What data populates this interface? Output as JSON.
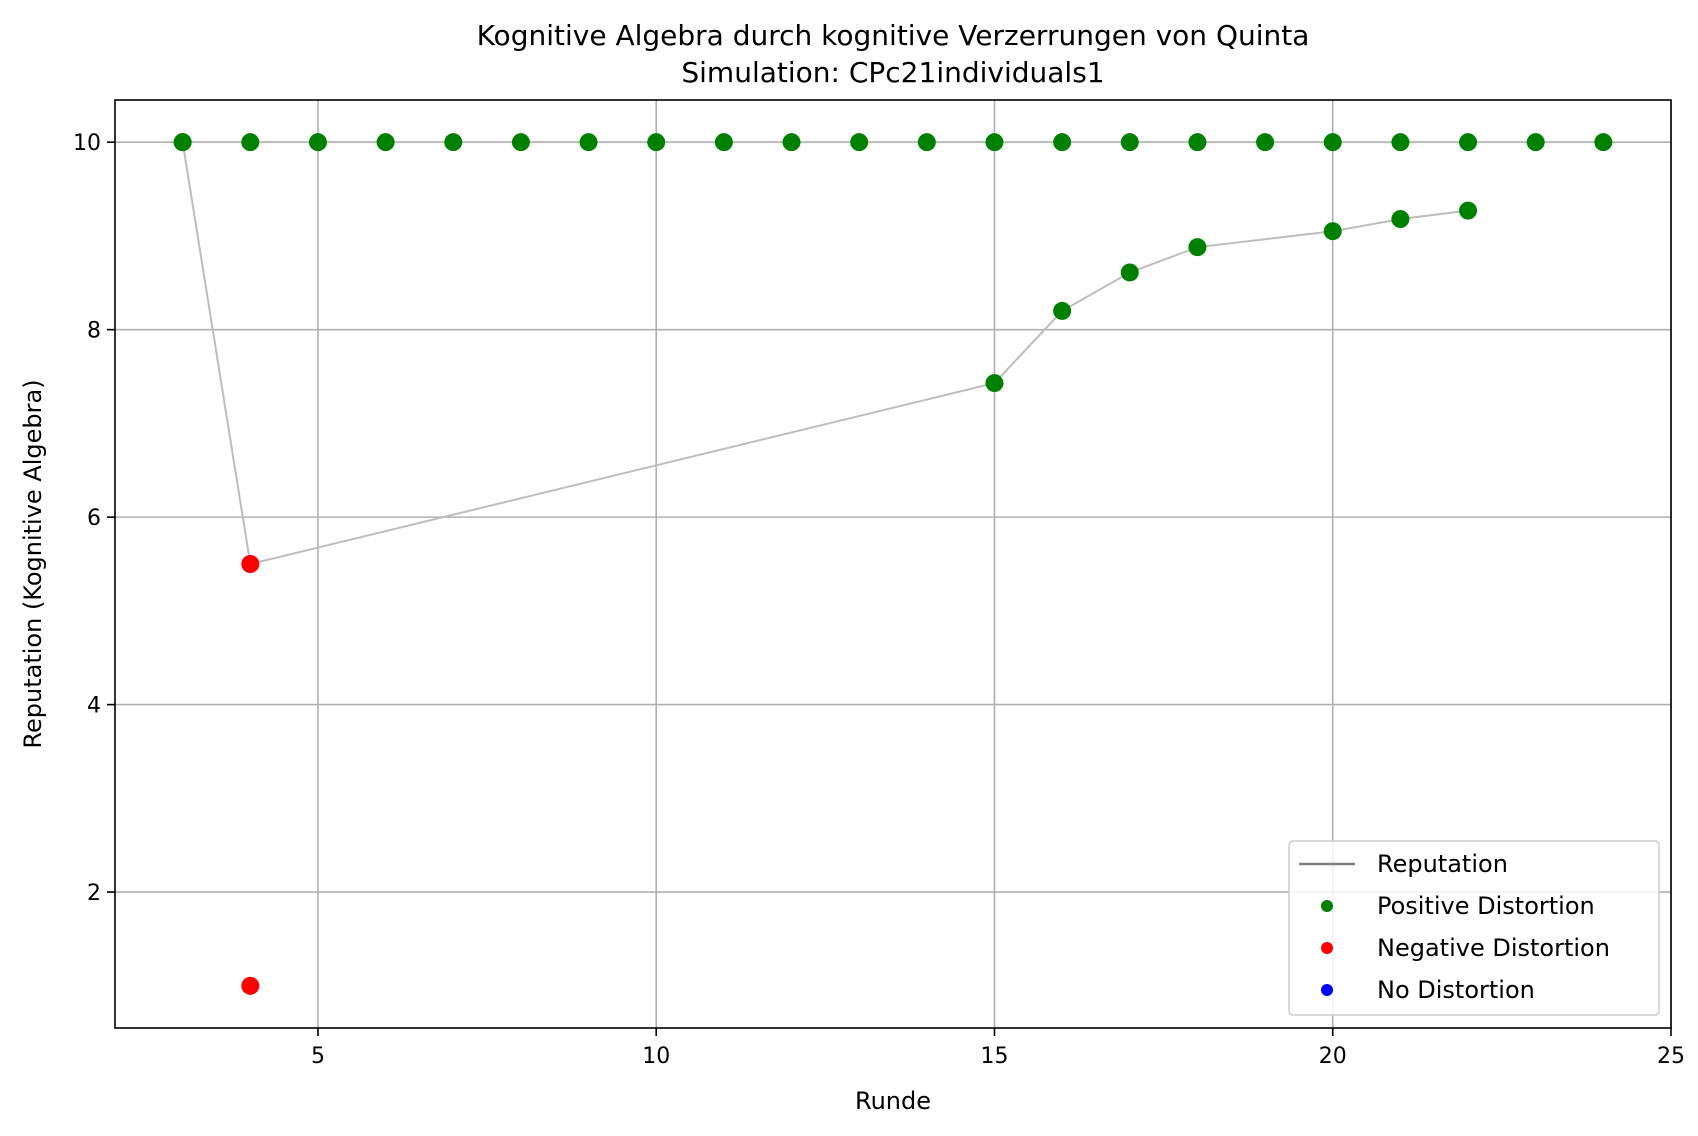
{
  "chart_data": {
    "type": "line",
    "title": "Kognitive Algebra durch kognitive Verzerrungen von Quinta",
    "subtitle": "Simulation: CPc21individuals1",
    "xlabel": "Runde",
    "ylabel": "Reputation (Kognitive Algebra)",
    "xlim": [
      2,
      25
    ],
    "ylim": [
      0.55,
      10.45
    ],
    "xticks": [
      5,
      10,
      15,
      20,
      25
    ],
    "yticks": [
      2,
      4,
      6,
      8,
      10
    ],
    "xtick_labels": [
      "5",
      "10",
      "15",
      "20",
      "25"
    ],
    "ytick_labels": [
      "2",
      "4",
      "6",
      "8",
      "10"
    ],
    "grid": true,
    "legend_position": "lower-right",
    "colors": {
      "reputation_line": "#bdbdbd",
      "legend_line": "#808080",
      "positive": "#008000",
      "negative": "#ff0000",
      "none": "#0000ff",
      "grid": "#b0b0b0"
    },
    "legend": [
      {
        "label": "Reputation",
        "kind": "line",
        "color": "#808080"
      },
      {
        "label": "Positive Distortion",
        "kind": "marker",
        "color": "#008000"
      },
      {
        "label": "Negative Distortion",
        "kind": "marker",
        "color": "#ff0000"
      },
      {
        "label": "No Distortion",
        "kind": "marker",
        "color": "#0000ff"
      }
    ],
    "series": [
      {
        "x": [
          3,
          4,
          5,
          6,
          7,
          8,
          9,
          10,
          11,
          12,
          13,
          14,
          15,
          16,
          17,
          18,
          19,
          20,
          21,
          22,
          23,
          24
        ],
        "y": [
          10,
          10,
          10,
          10,
          10,
          10,
          10,
          10,
          10,
          10,
          10,
          10,
          10,
          10,
          10,
          10,
          10,
          10,
          10,
          10,
          10,
          10
        ],
        "distortion": [
          "positive",
          "positive",
          "positive",
          "positive",
          "positive",
          "positive",
          "positive",
          "positive",
          "positive",
          "positive",
          "positive",
          "positive",
          "positive",
          "positive",
          "positive",
          "positive",
          "positive",
          "positive",
          "positive",
          "positive",
          "positive",
          "positive"
        ]
      },
      {
        "x": [
          3,
          4,
          15,
          16,
          17,
          18,
          20,
          21,
          22
        ],
        "y": [
          10,
          5.5,
          7.43,
          8.2,
          8.61,
          8.88,
          9.05,
          9.18,
          9.27
        ],
        "distortion": [
          "positive",
          "negative",
          "positive",
          "positive",
          "positive",
          "positive",
          "positive",
          "positive",
          "positive"
        ]
      },
      {
        "x": [
          4
        ],
        "y": [
          1.0
        ],
        "distortion": [
          "negative"
        ]
      }
    ]
  }
}
